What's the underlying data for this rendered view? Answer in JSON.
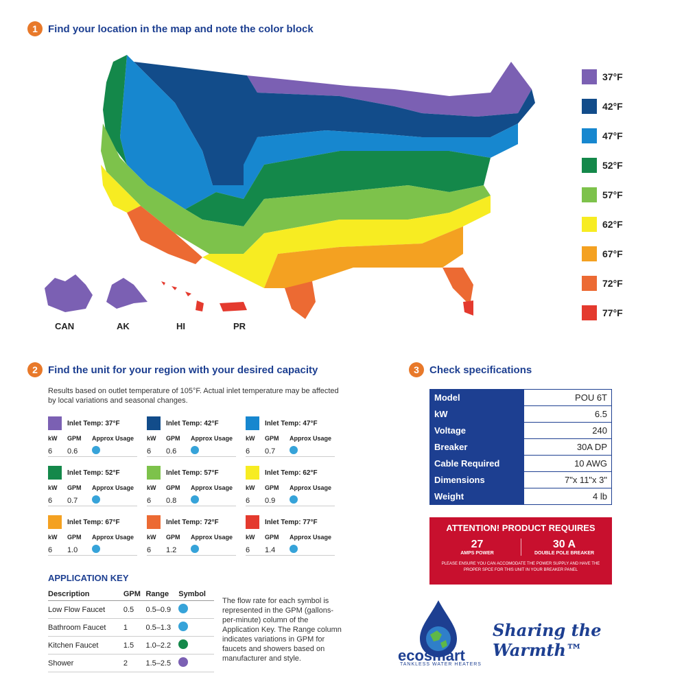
{
  "steps": {
    "one": {
      "num": "1",
      "title": "Find your location in the map and note the color block"
    },
    "two": {
      "num": "2",
      "title": "Find the unit for your region with your desired capacity"
    },
    "three": {
      "num": "3",
      "title": "Check specifications"
    }
  },
  "legend": [
    {
      "label": "37°F",
      "color": "#7b60b3"
    },
    {
      "label": "42°F",
      "color": "#124c8a"
    },
    {
      "label": "47°F",
      "color": "#1787cf"
    },
    {
      "label": "52°F",
      "color": "#14884a"
    },
    {
      "label": "57°F",
      "color": "#7dc24b"
    },
    {
      "label": "62°F",
      "color": "#f7ec22"
    },
    {
      "label": "67°F",
      "color": "#f4a121"
    },
    {
      "label": "72°F",
      "color": "#ec6a33"
    },
    {
      "label": "77°F",
      "color": "#e43a2e"
    }
  ],
  "regions": {
    "can": "CAN",
    "ak": "AK",
    "hi": "HI",
    "pr": "PR"
  },
  "note": "Results based on outlet temperature of 105°F. Actual inlet temperature may be affected by local variations and seasonal changes.",
  "card_cols": {
    "kw": "kW",
    "gpm": "GPM",
    "usage": "Approx Usage"
  },
  "cards": [
    {
      "title": "Inlet Temp: 37°F",
      "kw": "6",
      "gpm": "0.6",
      "color": "#7b60b3"
    },
    {
      "title": "Inlet Temp: 42°F",
      "kw": "6",
      "gpm": "0.6",
      "color": "#124c8a"
    },
    {
      "title": "Inlet Temp: 47°F",
      "kw": "6",
      "gpm": "0.7",
      "color": "#1787cf"
    },
    {
      "title": "Inlet Temp: 52°F",
      "kw": "6",
      "gpm": "0.7",
      "color": "#14884a"
    },
    {
      "title": "Inlet Temp: 57°F",
      "kw": "6",
      "gpm": "0.8",
      "color": "#7dc24b"
    },
    {
      "title": "Inlet Temp: 62°F",
      "kw": "6",
      "gpm": "0.9",
      "color": "#f7ec22"
    },
    {
      "title": "Inlet Temp: 67°F",
      "kw": "6",
      "gpm": "1.0",
      "color": "#f4a121"
    },
    {
      "title": "Inlet Temp: 72°F",
      "kw": "6",
      "gpm": "1.2",
      "color": "#ec6a33"
    },
    {
      "title": "Inlet Temp: 77°F",
      "kw": "6",
      "gpm": "1.4",
      "color": "#e43a2e"
    }
  ],
  "app_key": {
    "title": "APPLICATION KEY",
    "headers": [
      "Description",
      "GPM",
      "Range",
      "Symbol"
    ],
    "rows": [
      {
        "desc": "Low Flow Faucet",
        "gpm": "0.5",
        "range": "0.5–0.9",
        "color": "#36a3d9"
      },
      {
        "desc": "Bathroom Faucet",
        "gpm": "1",
        "range": "0.5–1.3",
        "color": "#36a3d9"
      },
      {
        "desc": "Kitchen Faucet",
        "gpm": "1.5",
        "range": "1.0–2.2",
        "color": "#14884a"
      },
      {
        "desc": "Shower",
        "gpm": "2",
        "range": "1.5–2.5",
        "color": "#7b60b3"
      }
    ]
  },
  "flow_note": "The flow rate for each symbol is represented in the GPM (gallons-per-minute) column of the Application Key. The Range column indicates variations in GPM for faucets and showers based on manufacturer and style.",
  "specs": [
    {
      "k": "Model",
      "v": "POU 6T"
    },
    {
      "k": "kW",
      "v": "6.5"
    },
    {
      "k": "Voltage",
      "v": "240"
    },
    {
      "k": "Breaker",
      "v": "30A DP"
    },
    {
      "k": "Cable Required",
      "v": "10 AWG"
    },
    {
      "k": "Dimensions",
      "v": "7\"x 11\"x 3\""
    },
    {
      "k": "Weight",
      "v": "4 lb"
    }
  ],
  "attention": {
    "title": "ATTENTION! PRODUCT REQUIRES",
    "left_big": "27",
    "left_small": "AMPS POWER",
    "right_big": "30 A",
    "right_small": "DOUBLE POLE BREAKER",
    "fine": "PLEASE ENSURE YOU CAN ACCOMODATE THE POWER SUPPLY AND HAVE THE PROPER SPCE FOR THIS UNIT IN YOUR BREAKER PANEL"
  },
  "brand": {
    "name": "ecosmart",
    "sub": "TANKLESS WATER HEATERS",
    "tagline": "Sharing the Warmth™"
  }
}
